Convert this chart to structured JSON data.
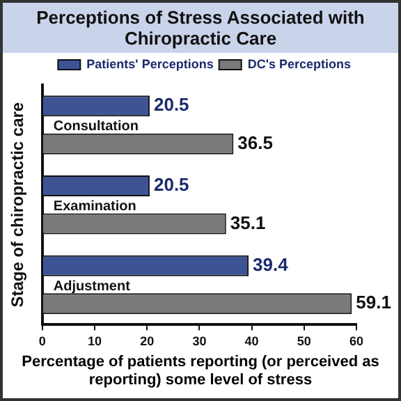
{
  "chart_data": {
    "type": "bar",
    "orientation": "horizontal",
    "title": "Perceptions of Stress Associated with Chiropractic Care",
    "xlabel": "Percentage of patients reporting (or perceived as reporting) some level of stress",
    "ylabel": "Stage of chiropractic care",
    "categories": [
      "Consultation",
      "Examination",
      "Adjustment"
    ],
    "series": [
      {
        "name": "Patients' Perceptions",
        "color": "#3d5394",
        "values": [
          20.5,
          20.5,
          39.4
        ]
      },
      {
        "name": "DC's Perceptions",
        "color": "#7a7a7a",
        "values": [
          36.5,
          35.1,
          59.1
        ]
      }
    ],
    "xlim": [
      0,
      60
    ],
    "xticks": [
      0,
      10,
      20,
      30,
      40,
      50,
      60
    ],
    "data_labels": true,
    "grid": false,
    "legend": "top right"
  }
}
